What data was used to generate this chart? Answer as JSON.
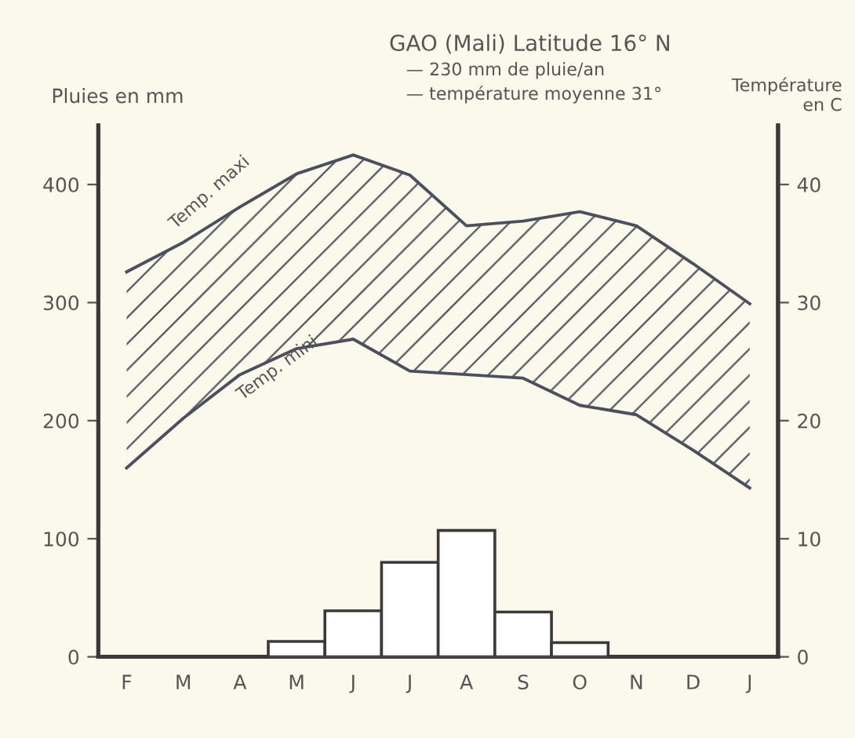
{
  "chart_data": {
    "type": "bar",
    "title": "GAO (Mali) Latitude 16° N",
    "annotations": [
      "— 230 mm de pluie/an",
      "— température moyenne 31°"
    ],
    "ylabel": "Pluies en mm",
    "y2label": "Température\nen C",
    "categories": [
      "F",
      "M",
      "A",
      "M",
      "J",
      "J",
      "A",
      "S",
      "O",
      "N",
      "D",
      "J"
    ],
    "series": [
      {
        "color": "#ffffff",
        "values": [
          null,
          null,
          null,
          13,
          39,
          80,
          107,
          38,
          12,
          null,
          null,
          null
        ]
      },
      {
        "type": "area",
        "name": "Temp. maxi",
        "axis": "y2",
        "color": "#4a505c",
        "values": [
          32.6,
          35.1,
          38.1,
          40.9,
          42.5,
          40.8,
          36.5,
          36.9,
          37.7,
          36.5,
          33.3,
          29.9
        ]
      },
      {
        "type": "line",
        "name": "Temp. mini",
        "axis": "y2",
        "color": "#4a505c",
        "values": [
          16.0,
          20.2,
          23.9,
          26.1,
          26.9,
          24.2,
          23.9,
          23.6,
          21.3,
          20.5,
          17.5,
          14.3
        ]
      }
    ],
    "ylim": [
      0,
      450
    ],
    "yticks": [
      0,
      100,
      200,
      300,
      400
    ],
    "y2lim": [
      0,
      45
    ],
    "y2ticks": [
      0,
      10,
      20,
      30,
      40
    ],
    "grid": false,
    "legend": false
  }
}
